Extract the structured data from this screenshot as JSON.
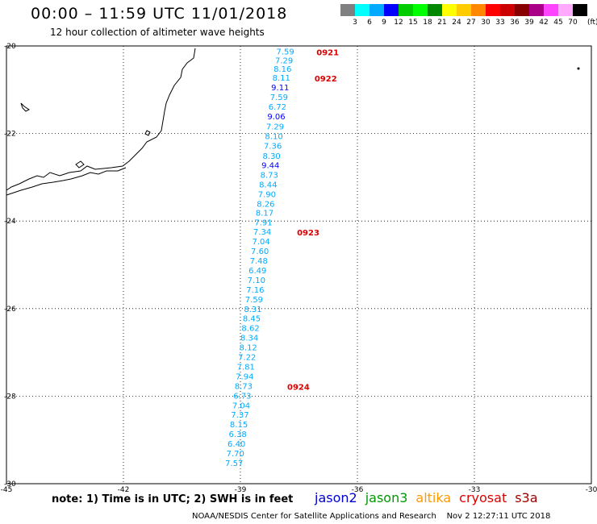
{
  "header": {
    "title": "00:00 – 11:59 UTC 11/01/2018",
    "subtitle": "12 hour collection of altimeter wave heights"
  },
  "color_scale": {
    "unit": "(ft)",
    "bins": [
      {
        "label": "3",
        "color": "#808080"
      },
      {
        "label": "6",
        "color": "#00ffff"
      },
      {
        "label": "9",
        "color": "#00aaff"
      },
      {
        "label": "12",
        "color": "#0000ff"
      },
      {
        "label": "15",
        "color": "#00cc00"
      },
      {
        "label": "18",
        "color": "#00ff00"
      },
      {
        "label": "21",
        "color": "#008800"
      },
      {
        "label": "24",
        "color": "#ffff00"
      },
      {
        "label": "27",
        "color": "#ffcc00"
      },
      {
        "label": "30",
        "color": "#ff8800"
      },
      {
        "label": "33",
        "color": "#ff0000"
      },
      {
        "label": "36",
        "color": "#cc0000"
      },
      {
        "label": "39",
        "color": "#880000"
      },
      {
        "label": "42",
        "color": "#aa0088"
      },
      {
        "label": "45",
        "color": "#ff44ff"
      },
      {
        "label": "70",
        "color": "#ffaaff"
      },
      {
        "label": "",
        "color": "#000000"
      }
    ]
  },
  "axes": {
    "lat_ticks": [
      "-20",
      "-22",
      "-24",
      "-26",
      "-28",
      "-30"
    ],
    "lon_ticks": [
      "-45",
      "-42",
      "-39",
      "-36",
      "-33",
      "-30"
    ],
    "lat_range": [
      -30,
      -20
    ],
    "lon_range": [
      -45,
      -30
    ]
  },
  "track": {
    "color": "#00aaff",
    "points": [
      {
        "lon": -37.85,
        "lat": -20.12,
        "value": "7.59"
      },
      {
        "lon": -37.88,
        "lat": -20.32,
        "value": "7.29"
      },
      {
        "lon": -37.92,
        "lat": -20.52,
        "value": "8.16"
      },
      {
        "lon": -37.95,
        "lat": -20.72,
        "value": "8.11"
      },
      {
        "lon": -37.98,
        "lat": -20.94,
        "value": "9.11"
      },
      {
        "lon": -38.01,
        "lat": -21.16,
        "value": "7.59"
      },
      {
        "lon": -38.05,
        "lat": -21.38,
        "value": "6.72"
      },
      {
        "lon": -38.08,
        "lat": -21.6,
        "value": "9.06"
      },
      {
        "lon": -38.11,
        "lat": -21.83,
        "value": "7.29"
      },
      {
        "lon": -38.14,
        "lat": -22.05,
        "value": "8.10"
      },
      {
        "lon": -38.17,
        "lat": -22.27,
        "value": "7.36"
      },
      {
        "lon": -38.2,
        "lat": -22.5,
        "value": "8.30"
      },
      {
        "lon": -38.23,
        "lat": -22.72,
        "value": "9.44"
      },
      {
        "lon": -38.26,
        "lat": -22.94,
        "value": "8.73"
      },
      {
        "lon": -38.29,
        "lat": -23.16,
        "value": "8.44"
      },
      {
        "lon": -38.32,
        "lat": -23.38,
        "value": "7.90"
      },
      {
        "lon": -38.35,
        "lat": -23.6,
        "value": "8.26"
      },
      {
        "lon": -38.38,
        "lat": -23.8,
        "value": "8.17"
      },
      {
        "lon": -38.41,
        "lat": -24.02,
        "value": "7.91"
      },
      {
        "lon": -38.44,
        "lat": -24.24,
        "value": "7.34"
      },
      {
        "lon": -38.47,
        "lat": -24.46,
        "value": "7.04"
      },
      {
        "lon": -38.5,
        "lat": -24.68,
        "value": "7.60"
      },
      {
        "lon": -38.53,
        "lat": -24.9,
        "value": "7.48"
      },
      {
        "lon": -38.56,
        "lat": -25.12,
        "value": "6.49"
      },
      {
        "lon": -38.59,
        "lat": -25.34,
        "value": "7.10"
      },
      {
        "lon": -38.62,
        "lat": -25.56,
        "value": "7.16"
      },
      {
        "lon": -38.65,
        "lat": -25.78,
        "value": "7.59"
      },
      {
        "lon": -38.68,
        "lat": -26.0,
        "value": "8.31"
      },
      {
        "lon": -38.71,
        "lat": -26.22,
        "value": "8.45"
      },
      {
        "lon": -38.74,
        "lat": -26.44,
        "value": "8.62"
      },
      {
        "lon": -38.77,
        "lat": -26.66,
        "value": "8.34"
      },
      {
        "lon": -38.8,
        "lat": -26.88,
        "value": "8.12"
      },
      {
        "lon": -38.83,
        "lat": -27.1,
        "value": "7.22"
      },
      {
        "lon": -38.86,
        "lat": -27.32,
        "value": "7.81"
      },
      {
        "lon": -38.89,
        "lat": -27.54,
        "value": "7.94"
      },
      {
        "lon": -38.92,
        "lat": -27.76,
        "value": "8.73"
      },
      {
        "lon": -38.95,
        "lat": -27.98,
        "value": "6.73"
      },
      {
        "lon": -38.98,
        "lat": -28.2,
        "value": "7.04"
      },
      {
        "lon": -39.01,
        "lat": -28.42,
        "value": "7.37"
      },
      {
        "lon": -39.04,
        "lat": -28.64,
        "value": "8.15"
      },
      {
        "lon": -39.07,
        "lat": -28.86,
        "value": "6.38"
      },
      {
        "lon": -39.1,
        "lat": -29.08,
        "value": "6.40"
      },
      {
        "lon": -39.13,
        "lat": -29.3,
        "value": "7.70"
      },
      {
        "lon": -39.16,
        "lat": -29.52,
        "value": "7.57"
      }
    ],
    "time_labels": [
      {
        "lon": -37.05,
        "lat": -20.12,
        "text": "0921"
      },
      {
        "lon": -37.1,
        "lat": -20.72,
        "text": "0922"
      },
      {
        "lon": -37.55,
        "lat": -24.24,
        "text": "0923"
      },
      {
        "lon": -37.8,
        "lat": -27.76,
        "text": "0924"
      }
    ],
    "label_color": "#dd0000"
  },
  "footer": {
    "note": "note: 1) Time is in UTC; 2) SWH is in feet",
    "satellites": [
      {
        "name": "jason2",
        "color": "#0000cc"
      },
      {
        "name": "jason3",
        "color": "#009900"
      },
      {
        "name": "altika",
        "color": "#ff9900"
      },
      {
        "name": "cryosat",
        "color": "#dd0000"
      },
      {
        "name": "s3a",
        "color": "#990000"
      }
    ],
    "credit": "NOAA/NESDIS Center for Satellite Applications and Research",
    "timestamp": "Nov  2 12:27:11 UTC 2018"
  }
}
